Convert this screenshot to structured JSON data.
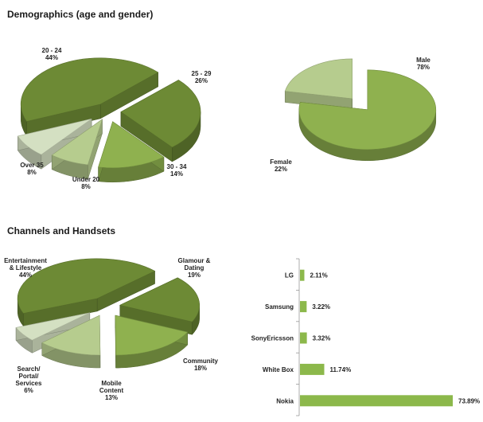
{
  "sections": {
    "demographics_title": "Demographics (age and gender)",
    "channels_title": "Channels and Handsets"
  },
  "colors": {
    "dark_green": "#6d8a35",
    "mid_green": "#8fb14f",
    "light_green": "#b6cc8e",
    "pale_green": "#d4e0c2",
    "bar_green": "#8cb84b"
  },
  "chart_data": [
    {
      "type": "pie",
      "title": "Demographics (age and gender)",
      "labels": [
        "20 - 24",
        "25 - 29",
        "30 - 34",
        "Under 20",
        "Over 35"
      ],
      "values": [
        44,
        26,
        14,
        8,
        8
      ],
      "value_labels": [
        "44%",
        "26%",
        "14%",
        "8%",
        "8%"
      ]
    },
    {
      "type": "pie",
      "labels": [
        "Male",
        "Female"
      ],
      "values": [
        78,
        22
      ],
      "value_labels": [
        "78%",
        "22%"
      ]
    },
    {
      "type": "pie",
      "title": "Channels and Handsets",
      "labels": [
        "Entertainment & Lifestyle",
        "Glamour & Dating",
        "Community",
        "Mobile Content",
        "Search/ Portal/ Services"
      ],
      "values": [
        44,
        19,
        18,
        13,
        6
      ],
      "value_labels": [
        "44%",
        "19%",
        "18%",
        "13%",
        "6%"
      ]
    },
    {
      "type": "bar",
      "orientation": "horizontal",
      "categories": [
        "LG",
        "Samsung",
        "SonyEricsson",
        "White Box",
        "Nokia"
      ],
      "values": [
        2.11,
        3.22,
        3.32,
        11.74,
        73.89
      ],
      "value_labels": [
        "2.11%",
        "3.22%",
        "3.32%",
        "11.74%",
        "73.89%"
      ]
    }
  ]
}
